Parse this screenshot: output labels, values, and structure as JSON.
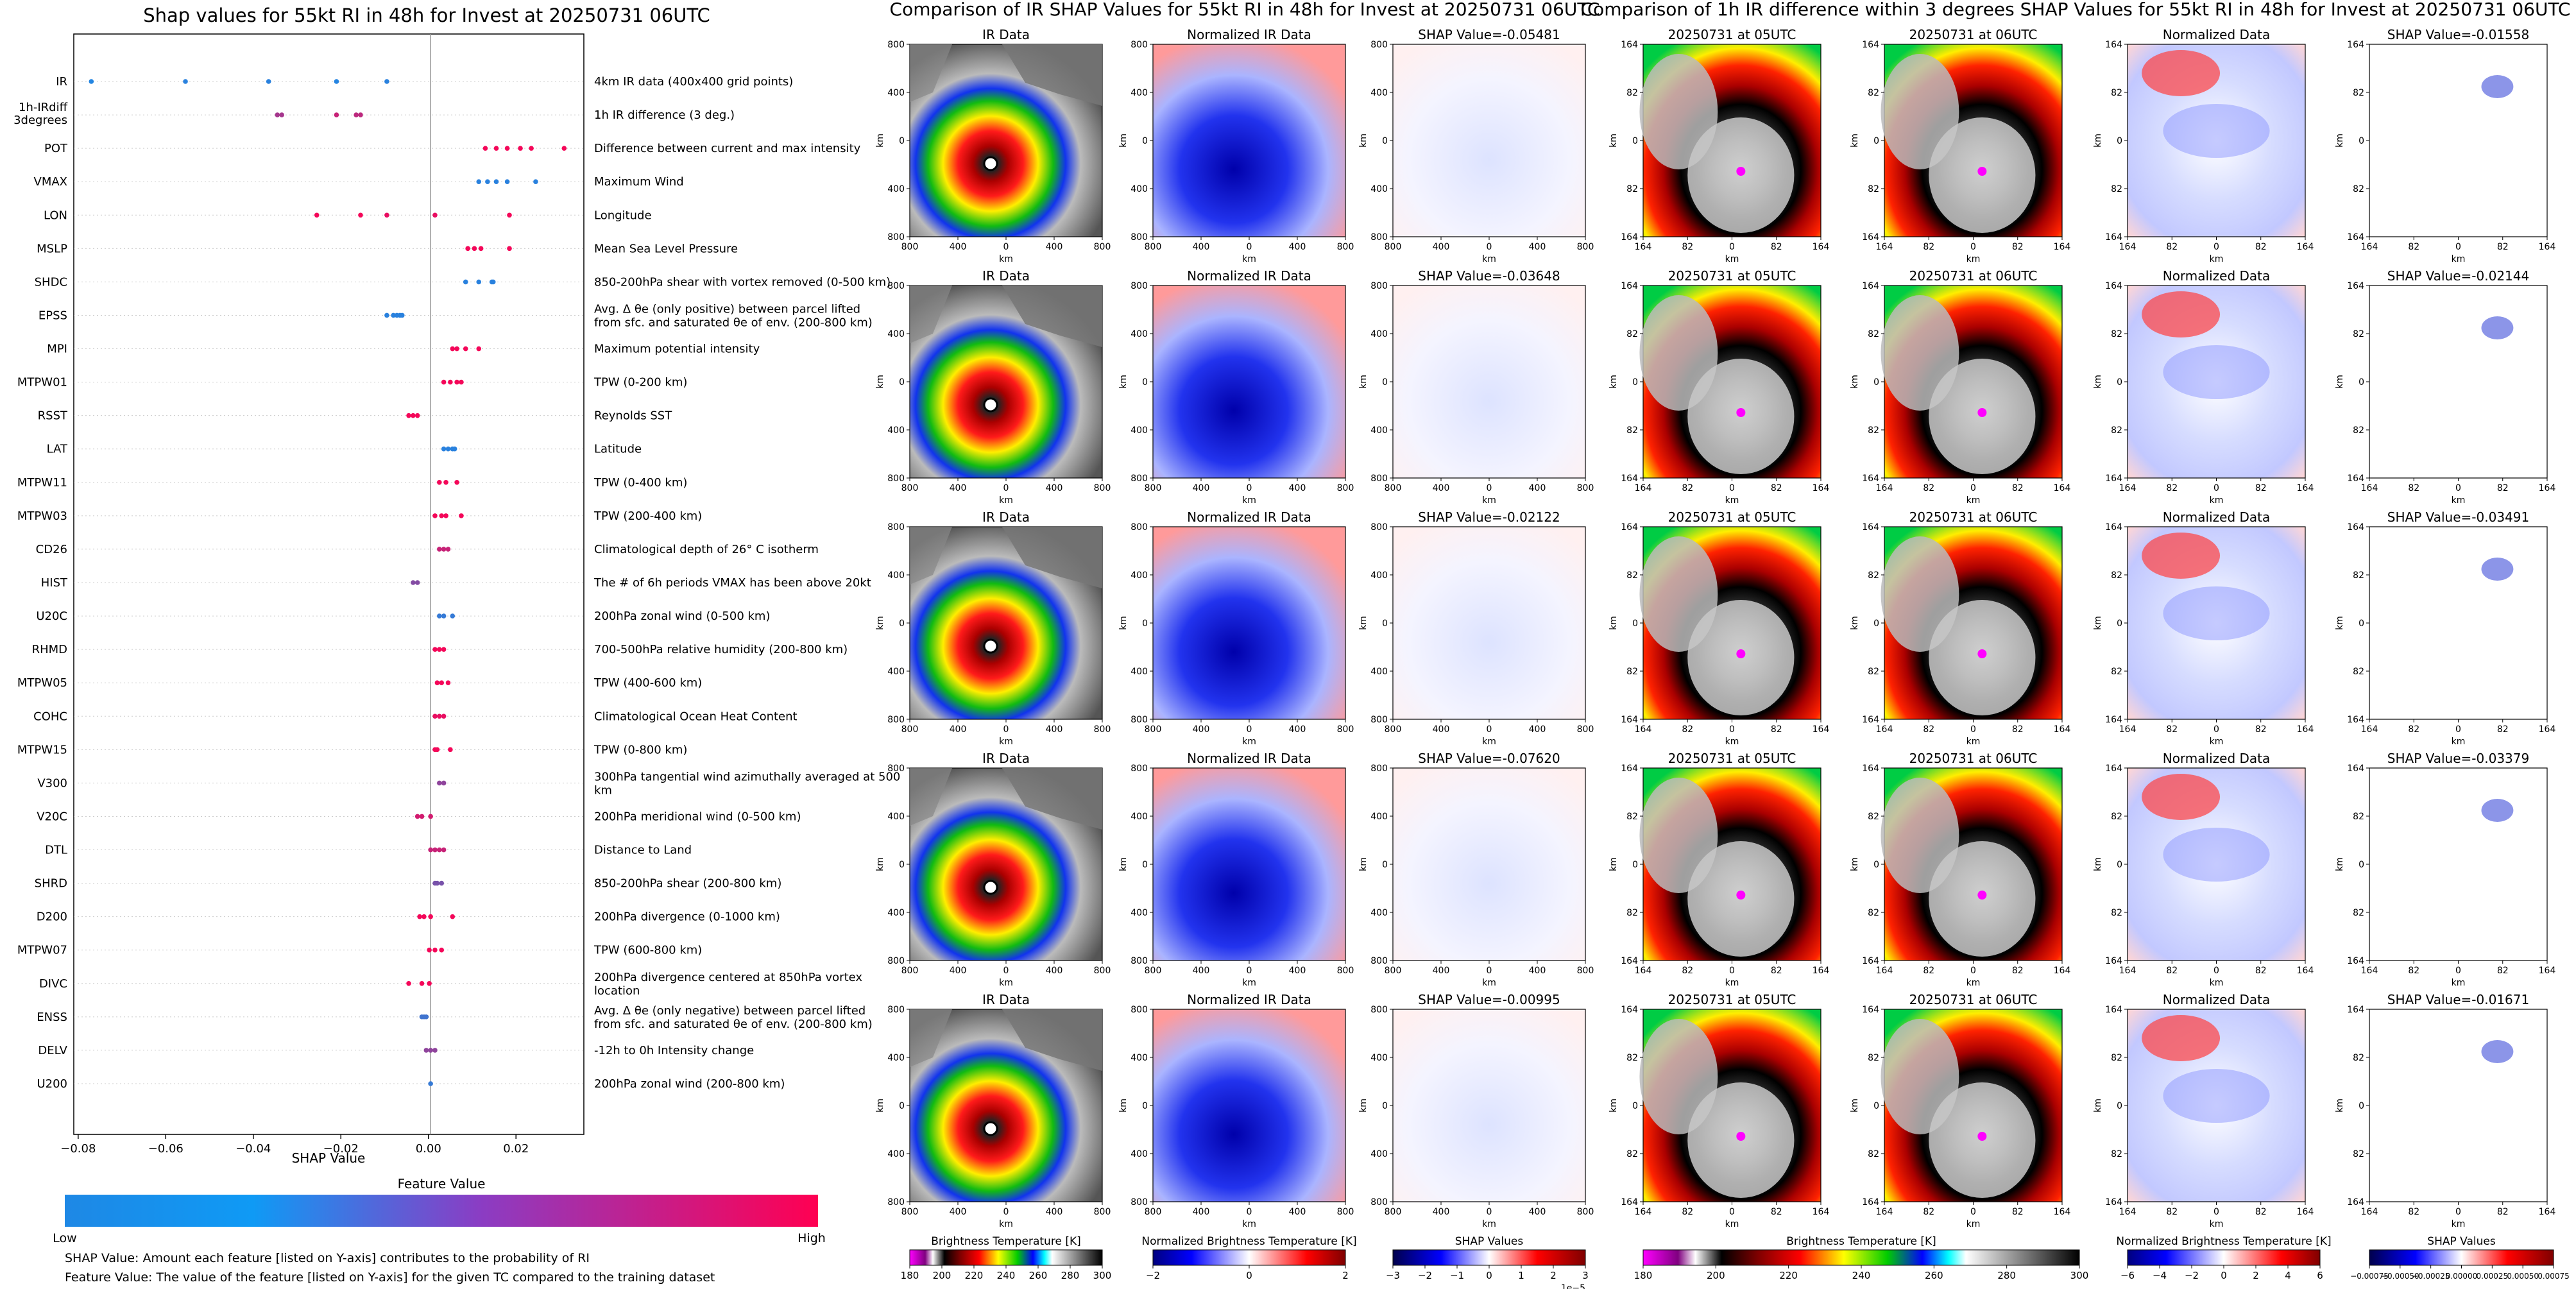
{
  "titles": {
    "shap": "Shap values for 55kt RI in 48h for Invest at 20250731 06UTC",
    "ir": "Comparison of IR SHAP Values for 55kt RI in 48h for Invest at 20250731 06UTC",
    "diff": "Comparison of 1h IR difference within 3 degrees SHAP Values for 55kt RI in 48h for Invest at 20250731 06UTC"
  },
  "beeswarm": {
    "xlabel": "SHAP Value",
    "xticks": [
      "−0.08",
      "−0.06",
      "−0.04",
      "−0.02",
      "0.00",
      "0.02"
    ],
    "features": [
      {
        "code": "IR",
        "desc": "4km IR data (400x400 grid points)"
      },
      {
        "code": "1h-IRdiff 3degrees",
        "desc": "1h IR difference (3 deg.)"
      },
      {
        "code": "POT",
        "desc": "Difference between current and max intensity"
      },
      {
        "code": "VMAX",
        "desc": "Maximum Wind"
      },
      {
        "code": "LON",
        "desc": "Longitude"
      },
      {
        "code": "MSLP",
        "desc": "Mean Sea Level Pressure"
      },
      {
        "code": "SHDC",
        "desc": "850-200hPa shear with vortex removed (0-500 km)"
      },
      {
        "code": "EPSS",
        "desc": "Avg. Δ θe (only positive) between parcel lifted from sfc. and saturated θe of env. (200-800 km)"
      },
      {
        "code": "MPI",
        "desc": "Maximum potential intensity"
      },
      {
        "code": "MTPW01",
        "desc": "TPW (0-200 km)"
      },
      {
        "code": "RSST",
        "desc": "Reynolds SST"
      },
      {
        "code": "LAT",
        "desc": "Latitude"
      },
      {
        "code": "MTPW11",
        "desc": "TPW (0-400 km)"
      },
      {
        "code": "MTPW03",
        "desc": "TPW (200-400 km)"
      },
      {
        "code": "CD26",
        "desc": "Climatological depth of 26° C isotherm"
      },
      {
        "code": "HIST",
        "desc": "The # of 6h periods VMAX has been above 20kt"
      },
      {
        "code": "U20C",
        "desc": "200hPa zonal wind (0-500 km)"
      },
      {
        "code": "RHMD",
        "desc": "700-500hPa relative humidity (200-800 km)"
      },
      {
        "code": "MTPW05",
        "desc": "TPW (400-600 km)"
      },
      {
        "code": "COHC",
        "desc": "Climatological Ocean Heat Content"
      },
      {
        "code": "MTPW15",
        "desc": "TPW (0-800 km)"
      },
      {
        "code": "V300",
        "desc": "300hPa tangential wind azimuthally averaged at 500 km"
      },
      {
        "code": "V20C",
        "desc": "200hPa meridional wind (0-500 km)"
      },
      {
        "code": "DTL",
        "desc": "Distance to Land"
      },
      {
        "code": "SHRD",
        "desc": "850-200hPa shear (200-800 km)"
      },
      {
        "code": "D200",
        "desc": "200hPa divergence (0-1000 km)"
      },
      {
        "code": "MTPW07",
        "desc": "TPW (600-800 km)"
      },
      {
        "code": "DIVC",
        "desc": "200hPa divergence centered at 850hPa vortex location"
      },
      {
        "code": "ENSS",
        "desc": "Avg. Δ θe (only negative) between parcel lifted from sfc. and saturated θe of env. (200-800 km)"
      },
      {
        "code": "DELV",
        "desc": "-12h to 0h Intensity change"
      },
      {
        "code": "U200",
        "desc": "200hPa zonal wind (200-800 km)"
      }
    ],
    "colorbar_title": "Feature Value",
    "colorbar_low": "Low",
    "colorbar_high": "High",
    "note1": "SHAP Value: Amount each feature [listed on Y-axis] contributes to the probability of RI",
    "note2": "Feature Value: The value of the feature [listed on Y-axis] for the given TC compared to the training dataset"
  },
  "panels": {
    "ir_title": "IR Data",
    "norm_title": "Normalized IR Data",
    "t05_title": "20250731 at 05UTC",
    "t06_title": "20250731 at 06UTC",
    "normdata_title": "Normalized Data",
    "km_label": "km",
    "ir_xticks": [
      "800",
      "400",
      "0",
      "400",
      "800"
    ],
    "ir_yticks": [
      "800",
      "400",
      "0",
      "400",
      "800"
    ],
    "diff_xticks": [
      "164",
      "82",
      "0",
      "82",
      "164"
    ],
    "diff_yticks": [
      "164",
      "82",
      "0",
      "82",
      "164"
    ],
    "ir_shap_titles": [
      "SHAP Value=-0.05481",
      "SHAP Value=-0.03648",
      "SHAP Value=-0.02122",
      "SHAP Value=-0.07620",
      "SHAP Value=-0.00995"
    ],
    "diff_shap_titles": [
      "SHAP Value=-0.01558",
      "SHAP Value=-0.02144",
      "SHAP Value=-0.03491",
      "SHAP Value=-0.03379",
      "SHAP Value=-0.01671"
    ]
  },
  "colorbars": {
    "bt_label": "Brightness Temperature [K]",
    "bt_ticks": [
      "180",
      "200",
      "220",
      "240",
      "260",
      "280",
      "300"
    ],
    "nbt_label": "Normalized Brightness Temperature [K]",
    "nbt_ticks_ir": [
      "−2",
      "0",
      "2"
    ],
    "nbt_ticks_diff": [
      "−6",
      "−4",
      "−2",
      "0",
      "2",
      "4",
      "6"
    ],
    "shap_label": "SHAP Values",
    "shap_ticks_ir": [
      "−3",
      "−2",
      "−1",
      "0",
      "1",
      "2",
      "3"
    ],
    "shap_exp": "1e−5",
    "shap_ticks_diff": [
      "−0.00075",
      "−0.00050",
      "−0.00025",
      "0.00000",
      "0.00025",
      "0.00050",
      "0.00075"
    ]
  },
  "chart_data": {
    "type": "scatter",
    "title": "Shap values for 55kt RI in 48h for Invest at 20250731 06UTC",
    "xlabel": "SHAP Value",
    "xlim": [
      -0.081,
      0.0355
    ],
    "y_order": "top-to-bottom",
    "colorscale": [
      "#1E88E5",
      "#FF0052"
    ],
    "series": [
      {
        "feature": "IR",
        "points": [
          [
            -0.077,
            0.02
          ],
          [
            -0.0555,
            0.05
          ],
          [
            -0.0365,
            0.05
          ],
          [
            -0.021,
            0.03
          ],
          [
            -0.0095,
            0.05
          ]
        ]
      },
      {
        "feature": "1h-IRdiff 3degrees",
        "points": [
          [
            -0.0345,
            0.6
          ],
          [
            -0.0335,
            0.6
          ],
          [
            -0.021,
            0.75
          ],
          [
            -0.0165,
            0.7
          ],
          [
            -0.0155,
            0.7
          ]
        ]
      },
      {
        "feature": "POT",
        "points": [
          [
            0.013,
            0.95
          ],
          [
            0.0155,
            0.95
          ],
          [
            0.018,
            0.95
          ],
          [
            0.021,
            0.95
          ],
          [
            0.0235,
            0.95
          ],
          [
            0.031,
            0.95
          ]
        ]
      },
      {
        "feature": "VMAX",
        "points": [
          [
            0.0115,
            0.05
          ],
          [
            0.0135,
            0.05
          ],
          [
            0.0155,
            0.05
          ],
          [
            0.018,
            0.05
          ],
          [
            0.0245,
            0.05
          ]
        ]
      },
      {
        "feature": "LON",
        "points": [
          [
            -0.0255,
            0.95
          ],
          [
            -0.0155,
            0.95
          ],
          [
            -0.0095,
            0.9
          ],
          [
            0.0015,
            0.9
          ],
          [
            0.0185,
            0.95
          ]
        ]
      },
      {
        "feature": "MSLP",
        "points": [
          [
            0.009,
            0.95
          ],
          [
            0.0105,
            0.95
          ],
          [
            0.012,
            0.95
          ],
          [
            0.0185,
            0.95
          ]
        ]
      },
      {
        "feature": "SHDC",
        "points": [
          [
            0.0085,
            0.05
          ],
          [
            0.0115,
            0.05
          ],
          [
            0.0145,
            0.05
          ],
          [
            0.0148,
            0.05
          ]
        ]
      },
      {
        "feature": "EPSS",
        "points": [
          [
            -0.0095,
            0.05
          ],
          [
            -0.008,
            0.05
          ],
          [
            -0.0072,
            0.05
          ],
          [
            -0.0065,
            0.05
          ],
          [
            -0.006,
            0.05
          ]
        ]
      },
      {
        "feature": "MPI",
        "points": [
          [
            0.0055,
            0.95
          ],
          [
            0.0065,
            0.95
          ],
          [
            0.0085,
            0.95
          ],
          [
            0.0115,
            0.95
          ]
        ]
      },
      {
        "feature": "MTPW01",
        "points": [
          [
            0.0035,
            0.95
          ],
          [
            0.005,
            0.95
          ],
          [
            0.0065,
            0.95
          ],
          [
            0.0075,
            0.95
          ]
        ]
      },
      {
        "feature": "RSST",
        "points": [
          [
            -0.0045,
            0.95
          ],
          [
            -0.0035,
            0.95
          ],
          [
            -0.0025,
            0.95
          ]
        ]
      },
      {
        "feature": "LAT",
        "points": [
          [
            0.0035,
            0.05
          ],
          [
            0.0045,
            0.05
          ],
          [
            0.0055,
            0.05
          ],
          [
            0.006,
            0.05
          ]
        ]
      },
      {
        "feature": "MTPW11",
        "points": [
          [
            0.0025,
            0.95
          ],
          [
            0.004,
            0.95
          ],
          [
            0.0065,
            0.95
          ]
        ]
      },
      {
        "feature": "MTPW03",
        "points": [
          [
            0.0015,
            0.95
          ],
          [
            0.003,
            0.95
          ],
          [
            0.004,
            0.95
          ],
          [
            0.0075,
            0.95
          ]
        ]
      },
      {
        "feature": "CD26",
        "points": [
          [
            0.0025,
            0.75
          ],
          [
            0.0035,
            0.75
          ],
          [
            0.0045,
            0.75
          ]
        ]
      },
      {
        "feature": "HIST",
        "points": [
          [
            -0.0035,
            0.45
          ],
          [
            -0.0025,
            0.45
          ]
        ]
      },
      {
        "feature": "U20C",
        "points": [
          [
            0.0025,
            0.1
          ],
          [
            0.0035,
            0.1
          ],
          [
            0.0055,
            0.1
          ]
        ]
      },
      {
        "feature": "RHMD",
        "points": [
          [
            0.0015,
            0.95
          ],
          [
            0.0025,
            0.95
          ],
          [
            0.0035,
            0.95
          ]
        ]
      },
      {
        "feature": "MTPW05",
        "points": [
          [
            0.002,
            0.95
          ],
          [
            0.003,
            0.95
          ],
          [
            0.0045,
            0.95
          ]
        ]
      },
      {
        "feature": "COHC",
        "points": [
          [
            0.0015,
            0.9
          ],
          [
            0.0025,
            0.9
          ],
          [
            0.0035,
            0.9
          ]
        ]
      },
      {
        "feature": "MTPW15",
        "points": [
          [
            0.0015,
            0.95
          ],
          [
            0.002,
            0.95
          ],
          [
            0.005,
            0.95
          ]
        ]
      },
      {
        "feature": "V300",
        "points": [
          [
            0.0025,
            0.5
          ],
          [
            0.0035,
            0.5
          ]
        ]
      },
      {
        "feature": "V20C",
        "points": [
          [
            -0.0025,
            0.8
          ],
          [
            -0.0015,
            0.8
          ],
          [
            0.0005,
            0.8
          ]
        ]
      },
      {
        "feature": "DTL",
        "points": [
          [
            0.0005,
            0.75
          ],
          [
            0.0015,
            0.75
          ],
          [
            0.0025,
            0.75
          ],
          [
            0.0035,
            0.75
          ]
        ]
      },
      {
        "feature": "SHRD",
        "points": [
          [
            0.0015,
            0.4
          ],
          [
            0.002,
            0.4
          ],
          [
            0.003,
            0.4
          ]
        ]
      },
      {
        "feature": "D200",
        "points": [
          [
            -0.002,
            0.95
          ],
          [
            -0.001,
            0.95
          ],
          [
            0.0005,
            0.95
          ],
          [
            0.0055,
            0.95
          ]
        ]
      },
      {
        "feature": "MTPW07",
        "points": [
          [
            0.0002,
            0.95
          ],
          [
            0.0015,
            0.95
          ],
          [
            0.003,
            0.95
          ]
        ]
      },
      {
        "feature": "DIVC",
        "points": [
          [
            -0.0045,
            0.95
          ],
          [
            -0.0015,
            0.95
          ],
          [
            0.0002,
            0.95
          ]
        ]
      },
      {
        "feature": "ENSS",
        "points": [
          [
            -0.0015,
            0.15
          ],
          [
            -0.001,
            0.15
          ],
          [
            -0.0005,
            0.15
          ]
        ]
      },
      {
        "feature": "DELV",
        "points": [
          [
            -0.0005,
            0.5
          ],
          [
            0.0005,
            0.5
          ],
          [
            0.0015,
            0.5
          ]
        ]
      },
      {
        "feature": "U200",
        "points": [
          [
            0.0005,
            0.1
          ]
        ]
      }
    ]
  }
}
